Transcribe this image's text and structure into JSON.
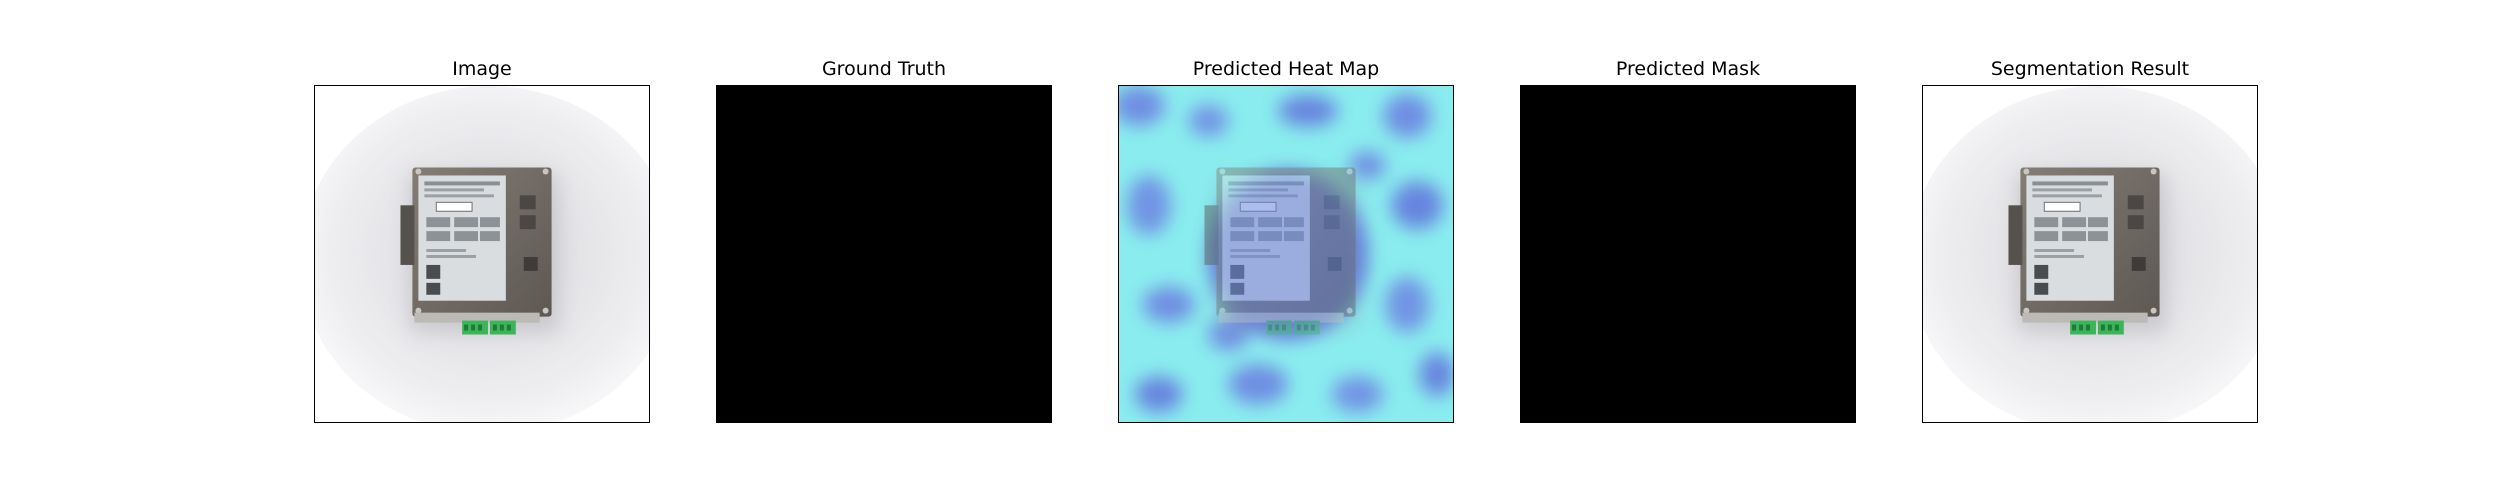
{
  "figure": {
    "panels": [
      {
        "title": "Image",
        "content": "device-photo"
      },
      {
        "title": "Ground Truth",
        "content": "empty-mask"
      },
      {
        "title": "Predicted Heat Map",
        "content": "heatmap-overlay"
      },
      {
        "title": "Predicted Mask",
        "content": "empty-mask"
      },
      {
        "title": "Segmentation Result",
        "content": "device-photo"
      }
    ],
    "colors": {
      "mask_background": "#000000",
      "heat_low": "#8ef0f0",
      "heat_high": "#5a4fd6",
      "device_body": "#6f6a63",
      "label_plate": "#d9dde0",
      "connector_green": "#3bb55a"
    }
  }
}
